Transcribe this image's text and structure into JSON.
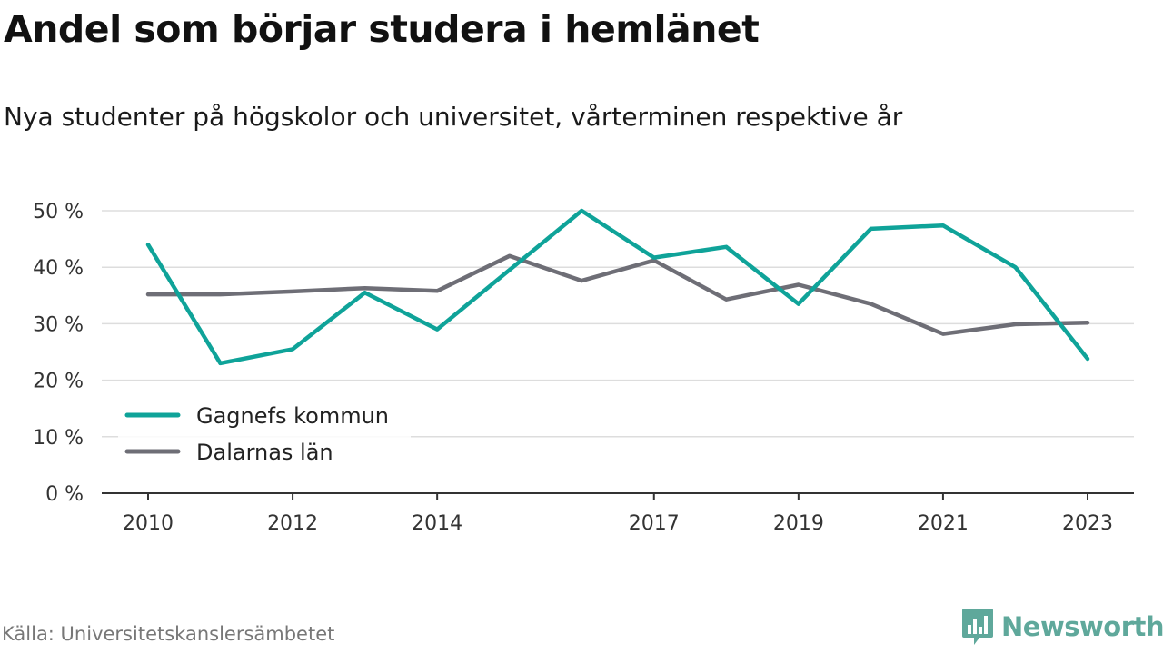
{
  "title": "Andel som börjar studera i hemlänet",
  "subtitle": "Nya studenter på högskolor och universitet, vårterminen respektive år",
  "source": "Källa: Universitetskanslersämbetet",
  "brand": {
    "name": "Newsworthy",
    "icon": "newsworthy-logo-icon",
    "color": "#5fa89b"
  },
  "chart_data": {
    "type": "line",
    "title": "Andel som börjar studera i hemlänet",
    "subtitle": "Nya studenter på högskolor och universitet, vårterminen respektive år",
    "x": [
      2010,
      2011,
      2012,
      2013,
      2014,
      2015,
      2016,
      2017,
      2018,
      2019,
      2020,
      2021,
      2022,
      2023
    ],
    "x_ticks": [
      "2010",
      "2012",
      "2014",
      "2017",
      "2019",
      "2021",
      "2023"
    ],
    "y_ticks": [
      "0 %",
      "10 %",
      "20 %",
      "30 %",
      "40 %",
      "50 %"
    ],
    "ylim": [
      0,
      50
    ],
    "grid": true,
    "legend_position": "bottom-left",
    "series": [
      {
        "name": "Gagnefs kommun",
        "color": "#0fa399",
        "values": [
          44,
          23,
          25.5,
          35.5,
          29,
          39.5,
          50,
          41.7,
          43.6,
          33.5,
          46.8,
          47.4,
          40,
          23.8
        ]
      },
      {
        "name": "Dalarnas län",
        "color": "#6e6e76",
        "values": [
          35.2,
          35.2,
          35.7,
          36.3,
          35.8,
          42,
          37.6,
          41.2,
          34.3,
          36.9,
          33.5,
          28.2,
          29.9,
          30.2
        ]
      }
    ]
  }
}
